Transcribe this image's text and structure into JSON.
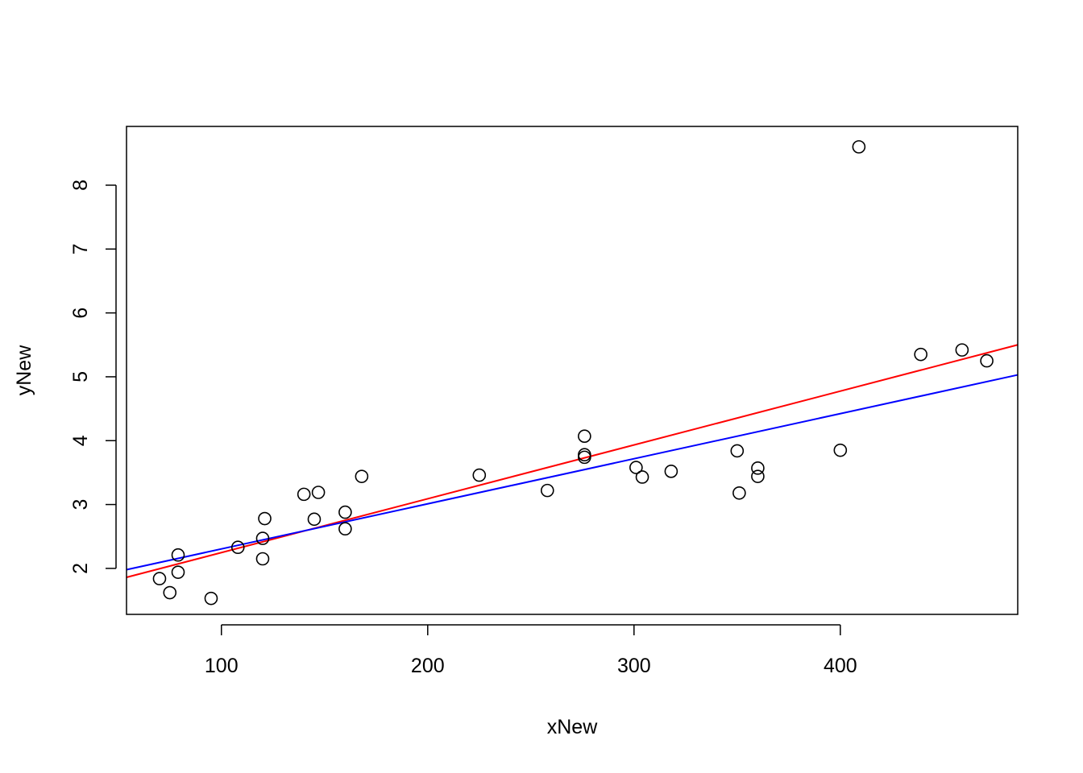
{
  "chart_data": {
    "type": "scatter",
    "title": "",
    "xlabel": "xNew",
    "ylabel": "yNew",
    "xlim": [
      54,
      486
    ],
    "ylim": [
      1.28,
      8.92
    ],
    "grid": false,
    "xticks": [
      {
        "value": 100,
        "label": "100"
      },
      {
        "value": 200,
        "label": "200"
      },
      {
        "value": 300,
        "label": "300"
      },
      {
        "value": 400,
        "label": "400"
      }
    ],
    "yticks": [
      {
        "value": 2,
        "label": "2"
      },
      {
        "value": 3,
        "label": "3"
      },
      {
        "value": 4,
        "label": "4"
      },
      {
        "value": 5,
        "label": "5"
      },
      {
        "value": 6,
        "label": "6"
      },
      {
        "value": 7,
        "label": "7"
      },
      {
        "value": 8,
        "label": "8"
      }
    ],
    "points": [
      [
        70,
        1.84
      ],
      [
        75,
        1.62
      ],
      [
        79,
        2.21
      ],
      [
        79,
        1.94
      ],
      [
        95,
        1.53
      ],
      [
        108,
        2.33
      ],
      [
        120,
        2.47
      ],
      [
        120,
        2.15
      ],
      [
        121,
        2.78
      ],
      [
        140,
        3.16
      ],
      [
        145,
        2.77
      ],
      [
        147,
        3.19
      ],
      [
        160,
        2.88
      ],
      [
        160,
        2.62
      ],
      [
        168,
        3.44
      ],
      [
        225,
        3.46
      ],
      [
        258,
        3.22
      ],
      [
        276,
        4.07
      ],
      [
        276,
        3.78
      ],
      [
        276,
        3.74
      ],
      [
        301,
        3.58
      ],
      [
        304,
        3.43
      ],
      [
        318,
        3.52
      ],
      [
        350,
        3.84
      ],
      [
        351,
        3.18
      ],
      [
        360,
        3.57
      ],
      [
        360,
        3.44
      ],
      [
        400,
        3.85
      ],
      [
        409,
        8.6
      ],
      [
        439,
        5.35
      ],
      [
        459,
        5.42
      ],
      [
        471,
        5.25
      ]
    ],
    "lines": [
      {
        "color": "#ff0000",
        "x": [
          54,
          486
        ],
        "y": [
          1.86,
          5.5
        ]
      },
      {
        "color": "#0000ff",
        "x": [
          54,
          486
        ],
        "y": [
          1.98,
          5.03
        ]
      }
    ]
  }
}
